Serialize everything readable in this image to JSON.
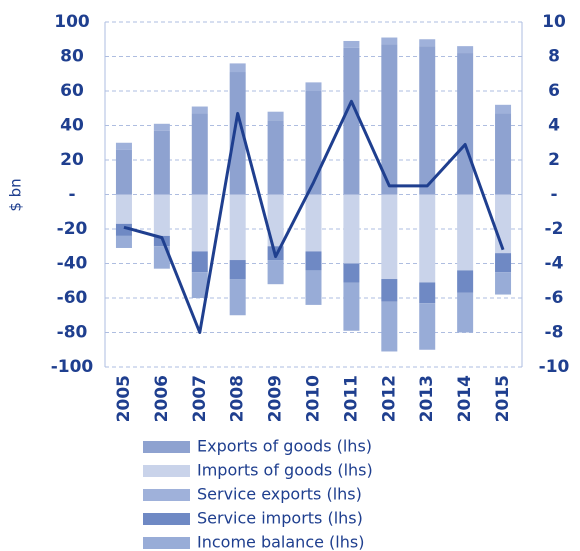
{
  "chart_data": {
    "type": "bar",
    "stacked": true,
    "ylabel": "$ bn",
    "categories": [
      "2005",
      "2006",
      "2007",
      "2008",
      "2009",
      "2010",
      "2011",
      "2012",
      "2013",
      "2014",
      "2015"
    ],
    "series": [
      {
        "name": "Exports of goods (lhs)",
        "color": "#8ea2d0",
        "values": [
          26,
          37,
          47,
          71,
          43,
          60,
          85,
          87,
          86,
          82,
          47
        ]
      },
      {
        "name": "Imports of goods (lhs)",
        "color": "#c9d3ea",
        "values": [
          -17,
          -24,
          -33,
          -38,
          -30,
          -33,
          -40,
          -49,
          -51,
          -44,
          -34
        ]
      },
      {
        "name": "Service exports (lhs)",
        "color": "#9fb1da",
        "values": [
          4,
          4,
          4,
          5,
          5,
          5,
          4,
          4,
          4,
          4,
          5
        ]
      },
      {
        "name": "Service imports (lhs)",
        "color": "#6f89c4",
        "values": [
          -7,
          -6,
          -12,
          -11,
          -8,
          -11,
          -11,
          -13,
          -12,
          -13,
          -11
        ]
      },
      {
        "name": "Income balance (lhs)",
        "color": "#98acd7",
        "values": [
          -7,
          -13,
          -15,
          -21,
          -14,
          -20,
          -28,
          -29,
          -27,
          -23,
          -13
        ]
      },
      {
        "type": "line",
        "axis": "y2",
        "color": "#1f3f8f",
        "values": [
          -1.9,
          -2.5,
          -8,
          4.7,
          -3.6,
          0.7,
          5.4,
          0.5,
          0.5,
          2.9,
          -3.2
        ]
      }
    ],
    "ylim": [
      -100,
      100
    ],
    "yticks": [
      100,
      80,
      60,
      40,
      20,
      {
        "value": 0,
        "label": "-"
      },
      -20,
      -40,
      -60,
      -80,
      -100
    ],
    "y2lim": [
      -10,
      10
    ],
    "y2ticks": [
      10,
      8,
      6,
      4,
      2,
      {
        "value": 0,
        "label": "-"
      },
      -2,
      -4,
      -6,
      -8,
      -10
    ],
    "grid": true
  }
}
